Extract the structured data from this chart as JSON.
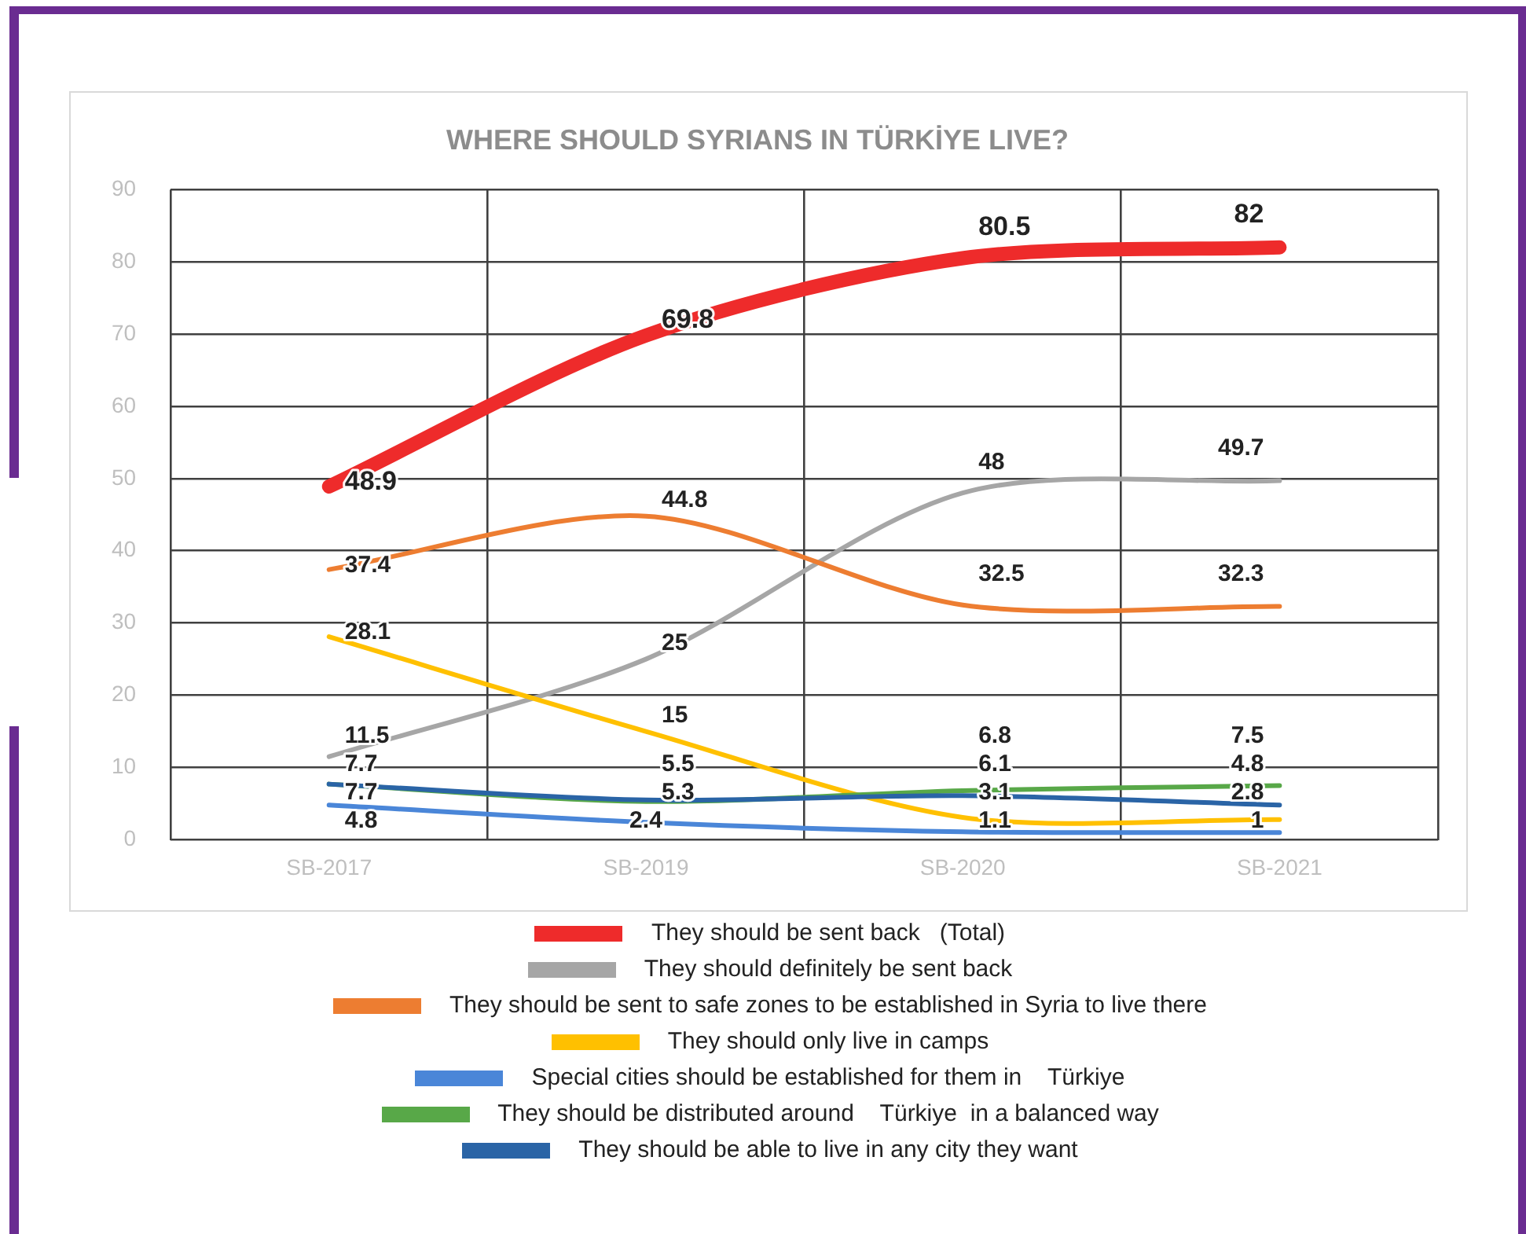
{
  "chart_data": {
    "type": "line",
    "title": "WHERE SHOULD SYRIANS IN TÜRKİYE LIVE?",
    "categories": [
      "SB-2017",
      "SB-2019",
      "SB-2020",
      "SB-2021"
    ],
    "series": [
      {
        "name": "They should be sent back   (Total)",
        "color": "#ee2b2b",
        "values": [
          48.9,
          69.8,
          80.5,
          82
        ]
      },
      {
        "name": "They should definitely be sent back",
        "color": "#a6a6a6",
        "values": [
          11.5,
          25,
          48,
          49.7
        ]
      },
      {
        "name": "They should be sent to safe zones to be established in Syria to live there",
        "color": "#ed7d31",
        "values": [
          37.4,
          44.8,
          32.5,
          32.3
        ]
      },
      {
        "name": "They should only live in camps",
        "color": "#ffc000",
        "values": [
          28.1,
          15,
          3.1,
          2.8
        ]
      },
      {
        "name": "Special cities should be established for them in    Türkiye",
        "color": "#4a86d8",
        "values": [
          4.8,
          2.4,
          1.1,
          1
        ]
      },
      {
        "name": "They should be distributed around    Türkiye  in a balanced way",
        "color": "#58a848",
        "values": [
          7.7,
          5.3,
          6.8,
          7.5
        ]
      },
      {
        "name": "They should be able to live in any city they want",
        "color": "#2a64a6",
        "values": [
          7.7,
          5.5,
          6.1,
          4.8
        ]
      }
    ],
    "ylim": [
      0,
      90
    ],
    "yticks": [
      0,
      10,
      20,
      30,
      40,
      50,
      60,
      70,
      80,
      90
    ],
    "grid": true,
    "legend": "bottom",
    "data_labels": true,
    "marker": "none",
    "line_style": "solid"
  }
}
